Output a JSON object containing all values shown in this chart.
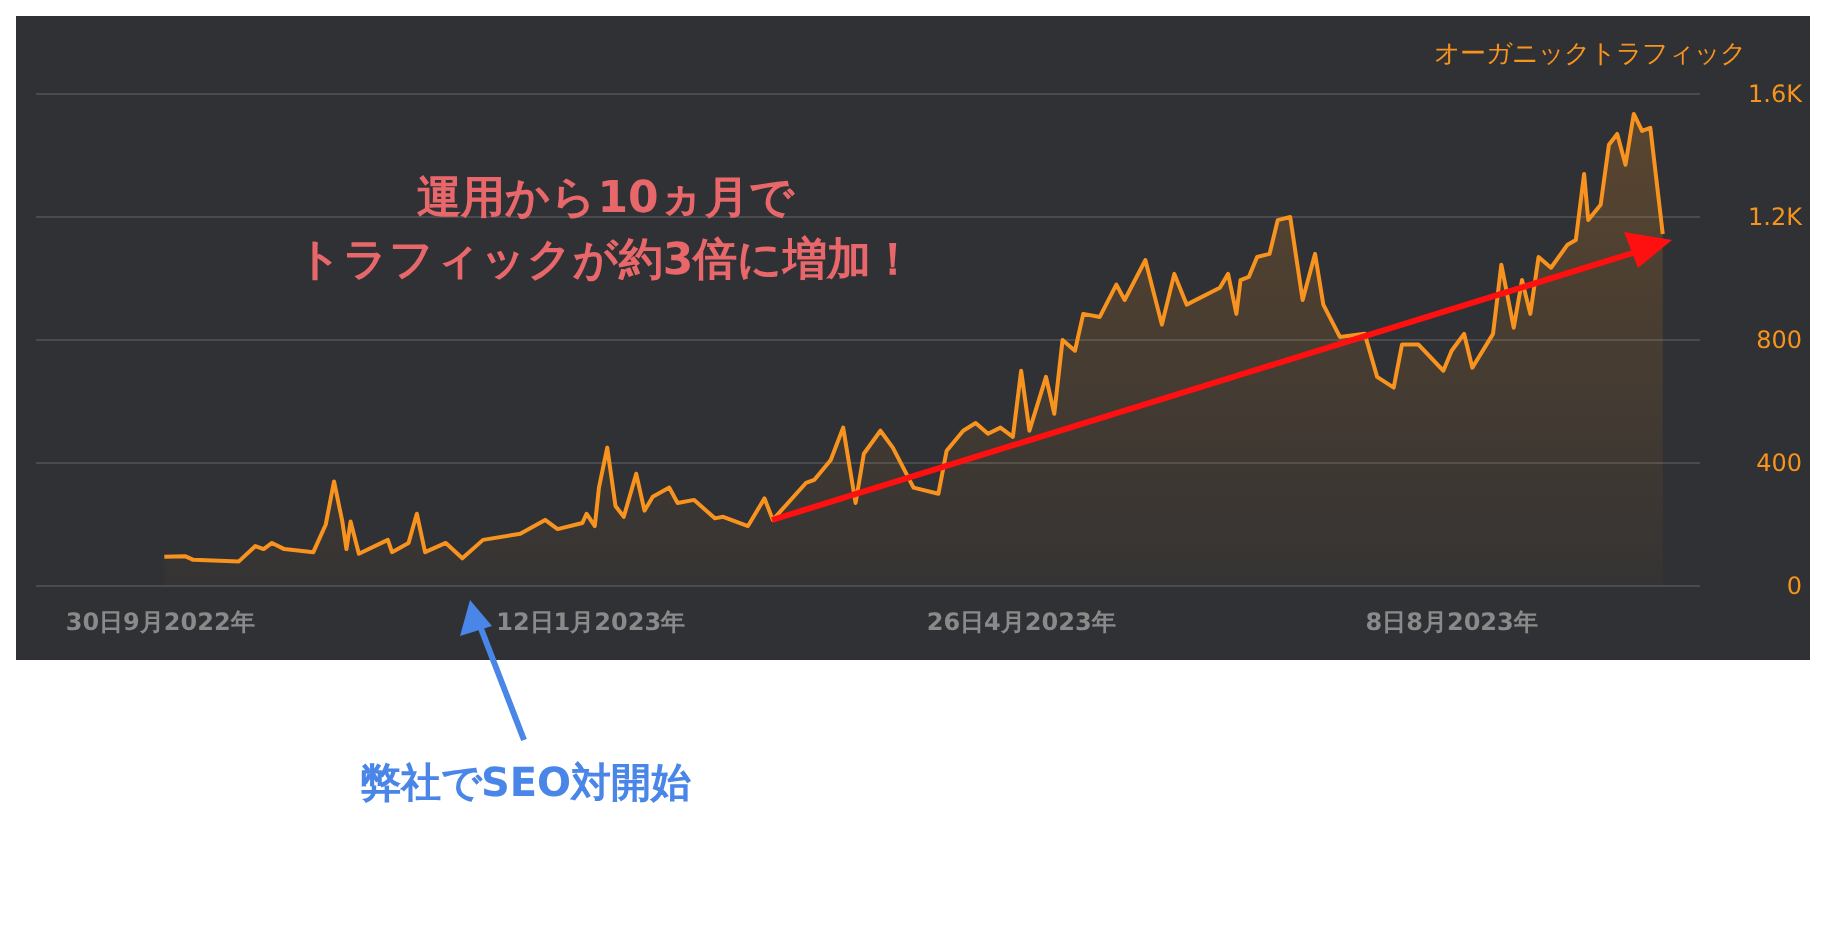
{
  "chart_data": {
    "type": "area",
    "legend": "top right",
    "grid": "y",
    "annotations": [
      "運用から10ヵ月で",
      "トラフィックが約3倍に増加！",
      "弊社でSEO対開始"
    ],
    "xlim": [
      "2022-08-31",
      "2023-10-07"
    ],
    "xticks": [
      {
        "value": "2022-09-30",
        "label": "30日9月2022年"
      },
      {
        "value": "2023-01-12",
        "label": "12日1月2023年"
      },
      {
        "value": "2023-04-26",
        "label": "26日4月2023年"
      },
      {
        "value": "2023-08-08",
        "label": "8日8月2023年"
      }
    ],
    "ylim": [
      0,
      1600
    ],
    "yticks": [
      0,
      400,
      800,
      {
        "value": 1200,
        "label": "1.2K"
      },
      {
        "value": 1600,
        "label": "1.6K"
      }
    ],
    "series": [
      {
        "name": "オーガニックトラフィック",
        "color": "#f7931e",
        "x": [
          "2022-10-01",
          "2022-10-06",
          "2022-10-08",
          "2022-10-19",
          "2022-10-23",
          "2022-10-25",
          "2022-10-27",
          "2022-10-30",
          "2022-11-06",
          "2022-11-09",
          "2022-11-11",
          "2022-11-13",
          "2022-11-14",
          "2022-11-15",
          "2022-11-17",
          "2022-11-24",
          "2022-11-25",
          "2022-11-29",
          "2022-12-01",
          "2022-12-03",
          "2022-12-08",
          "2022-12-12",
          "2022-12-17",
          "2022-12-26",
          "2023-01-01",
          "2023-01-04",
          "2023-01-10",
          "2023-01-11",
          "2023-01-13",
          "2023-01-14",
          "2023-01-16",
          "2023-01-18",
          "2023-01-20",
          "2023-01-23",
          "2023-01-25",
          "2023-01-27",
          "2023-01-31",
          "2023-02-02",
          "2023-02-06",
          "2023-02-11",
          "2023-02-13",
          "2023-02-19",
          "2023-02-23",
          "2023-02-25",
          "2023-03-05",
          "2023-03-07",
          "2023-03-11",
          "2023-03-14",
          "2023-03-17",
          "2023-03-19",
          "2023-03-23",
          "2023-03-26",
          "2023-03-31",
          "2023-04-06",
          "2023-04-08",
          "2023-04-12",
          "2023-04-15",
          "2023-04-18",
          "2023-04-21",
          "2023-04-24",
          "2023-04-26",
          "2023-04-28",
          "2023-05-02",
          "2023-05-04",
          "2023-05-06",
          "2023-05-09",
          "2023-05-11",
          "2023-05-15",
          "2023-05-19",
          "2023-05-21",
          "2023-05-26",
          "2023-05-30",
          "2023-06-02",
          "2023-06-05",
          "2023-06-13",
          "2023-06-15",
          "2023-06-17",
          "2023-06-18",
          "2023-06-20",
          "2023-06-22",
          "2023-06-25",
          "2023-06-27",
          "2023-06-30",
          "2023-07-03",
          "2023-07-06",
          "2023-07-08",
          "2023-07-12",
          "2023-07-18",
          "2023-07-21",
          "2023-07-25",
          "2023-07-27",
          "2023-07-31",
          "2023-08-06",
          "2023-08-08",
          "2023-08-11",
          "2023-08-13",
          "2023-08-18",
          "2023-08-20",
          "2023-08-23",
          "2023-08-25",
          "2023-08-27",
          "2023-08-29",
          "2023-09-01",
          "2023-09-05",
          "2023-09-07",
          "2023-09-09",
          "2023-09-10",
          "2023-09-13",
          "2023-09-15",
          "2023-09-17",
          "2023-09-19",
          "2023-09-21",
          "2023-09-23",
          "2023-09-25",
          "2023-09-28"
        ],
        "values": [
          95,
          97,
          85,
          80,
          130,
          120,
          140,
          120,
          110,
          200,
          340,
          210,
          120,
          210,
          105,
          150,
          110,
          140,
          235,
          110,
          140,
          90,
          150,
          170,
          215,
          185,
          205,
          235,
          195,
          320,
          450,
          260,
          225,
          365,
          245,
          290,
          320,
          270,
          280,
          220,
          225,
          195,
          285,
          215,
          335,
          345,
          410,
          515,
          270,
          430,
          505,
          450,
          320,
          300,
          440,
          505,
          530,
          495,
          515,
          485,
          700,
          505,
          680,
          560,
          800,
          765,
          885,
          875,
          980,
          930,
          1060,
          850,
          1015,
          915,
          970,
          1015,
          885,
          995,
          1005,
          1070,
          1080,
          1190,
          1200,
          930,
          1080,
          915,
          810,
          820,
          680,
          645,
          785,
          785,
          700,
          765,
          820,
          710,
          820,
          1045,
          840,
          995,
          885,
          1070,
          1035,
          1110,
          1125,
          1340,
          1190,
          1240,
          1435,
          1470,
          1370,
          1535,
          1480,
          1490,
          1145
        ]
      }
    ]
  }
}
